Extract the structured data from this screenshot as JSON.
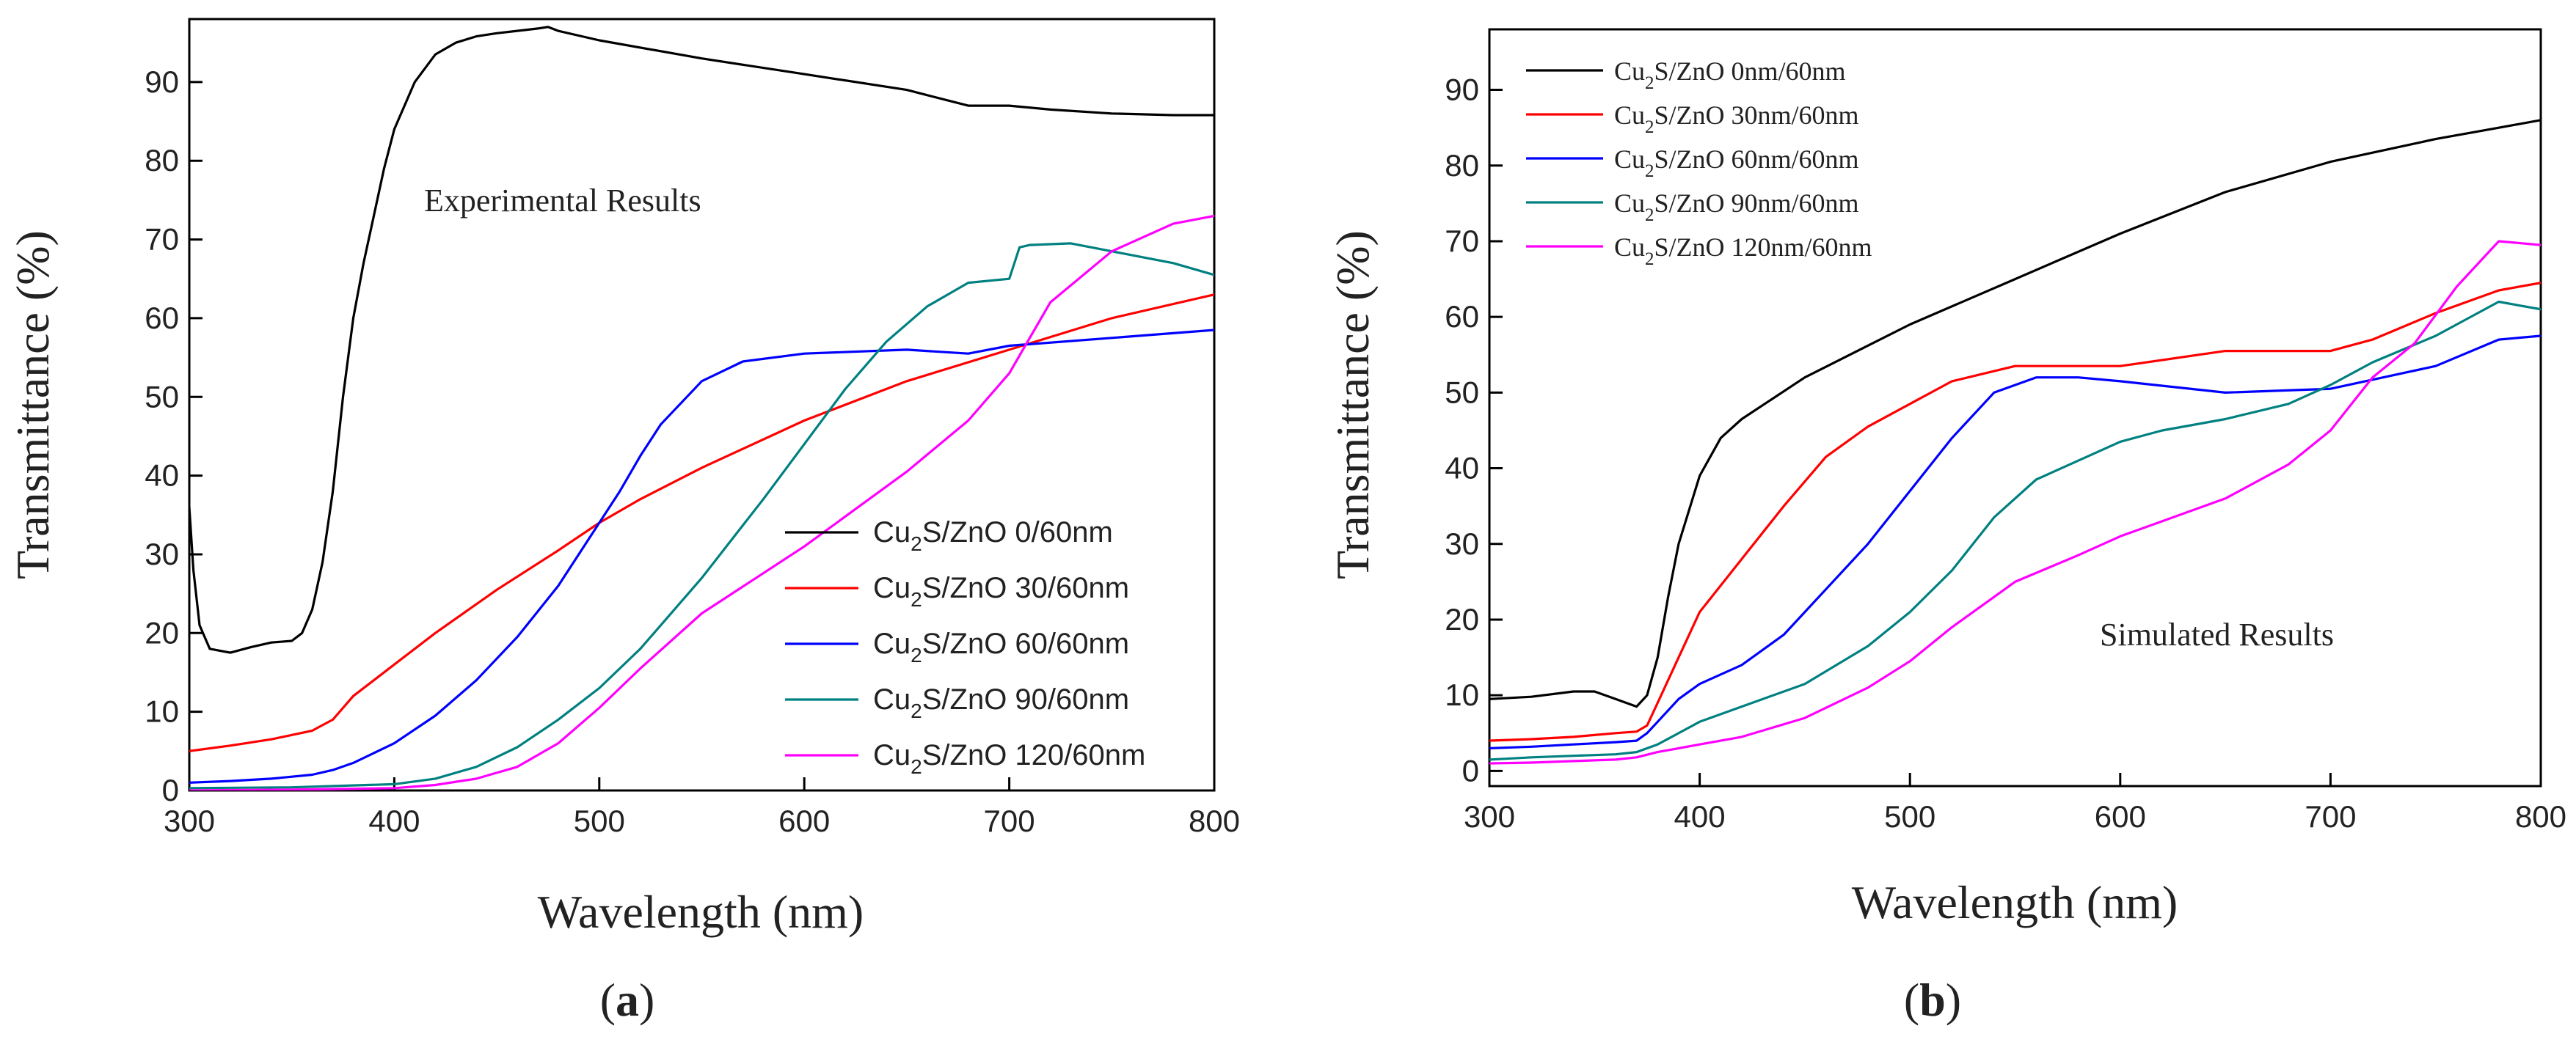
{
  "chart_data": [
    {
      "type": "line",
      "panel_label_open": "(",
      "panel_label_letter": "a",
      "panel_label_close": ")",
      "annotation": "Experimental Results",
      "xlabel": "Wavelength (nm)",
      "ylabel": "Transmittance (%)",
      "xlim": [
        300,
        800
      ],
      "ylim": [
        0,
        98
      ],
      "xticks": [
        300,
        400,
        500,
        600,
        700,
        800
      ],
      "yticks": [
        0,
        10,
        20,
        30,
        40,
        50,
        60,
        70,
        80,
        90
      ],
      "legend_position": "lower-right",
      "series": [
        {
          "name": "Cu2S/ZnO 0/60nm",
          "label_pre": "Cu",
          "label_sub": "2",
          "label_post": "S/ZnO 0/60nm",
          "color": "#000000",
          "x": [
            300,
            302,
            305,
            310,
            320,
            330,
            340,
            350,
            355,
            360,
            365,
            370,
            375,
            380,
            385,
            390,
            395,
            400,
            410,
            420,
            430,
            440,
            450,
            460,
            470,
            475,
            480,
            500,
            550,
            600,
            650,
            680,
            700,
            720,
            750,
            780,
            800
          ],
          "y": [
            36,
            28,
            21,
            18,
            17.5,
            18.2,
            18.8,
            19,
            20,
            23,
            29,
            38,
            50,
            60,
            67,
            73,
            79,
            84,
            90,
            93.5,
            95,
            95.8,
            96.2,
            96.5,
            96.8,
            97,
            96.5,
            95.3,
            93,
            91,
            89,
            87,
            87,
            86.5,
            86,
            85.8,
            85.8
          ]
        },
        {
          "name": "Cu2S/ZnO 30/60nm",
          "label_pre": "Cu",
          "label_sub": "2",
          "label_post": "S/ZnO 30/60nm",
          "color": "#ff0000",
          "x": [
            300,
            320,
            340,
            360,
            370,
            380,
            390,
            400,
            420,
            450,
            480,
            500,
            520,
            550,
            600,
            650,
            700,
            750,
            800
          ],
          "y": [
            5,
            5.7,
            6.5,
            7.6,
            9,
            12,
            14,
            16,
            20,
            25.5,
            30.5,
            34,
            37,
            41,
            47,
            52,
            56,
            60,
            63
          ]
        },
        {
          "name": "Cu2S/ZnO 60/60nm",
          "label_pre": "Cu",
          "label_sub": "2",
          "label_post": "S/ZnO 60/60nm",
          "color": "#0000ff",
          "x": [
            300,
            320,
            340,
            360,
            370,
            380,
            400,
            420,
            440,
            460,
            480,
            500,
            510,
            520,
            530,
            550,
            570,
            600,
            650,
            680,
            700,
            750,
            800
          ],
          "y": [
            1,
            1.2,
            1.5,
            2,
            2.6,
            3.5,
            6,
            9.5,
            14,
            19.5,
            26,
            34,
            38,
            42.5,
            46.5,
            52,
            54.5,
            55.5,
            56,
            55.5,
            56.5,
            57.5,
            58.5
          ]
        },
        {
          "name": "Cu2S/ZnO 90/60nm",
          "label_pre": "Cu",
          "label_sub": "2",
          "label_post": "S/ZnO 90/60nm",
          "color": "#008080",
          "x": [
            300,
            350,
            400,
            420,
            440,
            460,
            480,
            500,
            520,
            550,
            580,
            600,
            620,
            640,
            660,
            680,
            700,
            705,
            710,
            730,
            750,
            780,
            800
          ],
          "y": [
            0.3,
            0.4,
            0.8,
            1.5,
            3,
            5.5,
            9,
            13,
            18,
            27,
            37,
            44,
            51,
            57,
            61.5,
            64.5,
            65,
            69,
            69.3,
            69.5,
            68.5,
            67,
            65.5
          ]
        },
        {
          "name": "Cu2S/ZnO 120/60nm",
          "label_pre": "Cu",
          "label_sub": "2",
          "label_post": "S/ZnO 120/60nm",
          "color": "#ff00ff",
          "x": [
            300,
            350,
            400,
            420,
            440,
            460,
            480,
            500,
            520,
            550,
            600,
            650,
            680,
            700,
            720,
            750,
            780,
            800
          ],
          "y": [
            0,
            0.1,
            0.3,
            0.7,
            1.5,
            3,
            6,
            10.5,
            15.5,
            22.5,
            31,
            40.5,
            47,
            53,
            62,
            68.5,
            72,
            73
          ]
        }
      ]
    },
    {
      "type": "line",
      "panel_label_open": "(",
      "panel_label_letter": "b",
      "panel_label_close": ")",
      "annotation": "Simulated Results",
      "xlabel": "Wavelength (nm)",
      "ylabel": "Transmittance (%)",
      "xlim": [
        300,
        800
      ],
      "ylim": [
        -2,
        98
      ],
      "xticks": [
        300,
        400,
        500,
        600,
        700,
        800
      ],
      "yticks": [
        0,
        10,
        20,
        30,
        40,
        50,
        60,
        70,
        80,
        90
      ],
      "legend_position": "top-left",
      "series": [
        {
          "name": "Cu2S/ZnO 0nm/60nm",
          "label_pre": "Cu",
          "label_sub": "2",
          "label_post": "S/ZnO 0nm/60nm",
          "color": "#000000",
          "x": [
            300,
            320,
            340,
            350,
            360,
            370,
            375,
            380,
            385,
            390,
            400,
            410,
            420,
            450,
            500,
            550,
            600,
            650,
            700,
            750,
            780,
            800
          ],
          "y": [
            9.5,
            9.8,
            10.5,
            10.5,
            9.5,
            8.5,
            10,
            15,
            23,
            30,
            39,
            44,
            46.5,
            52,
            59,
            65,
            71,
            76.5,
            80.5,
            83.5,
            85,
            86
          ]
        },
        {
          "name": "Cu2S/ZnO 30nm/60nm",
          "label_pre": "Cu",
          "label_sub": "2",
          "label_post": "S/ZnO 30nm/60nm",
          "color": "#ff0000",
          "x": [
            300,
            320,
            340,
            360,
            370,
            375,
            380,
            390,
            400,
            420,
            440,
            460,
            480,
            500,
            520,
            550,
            600,
            650,
            700,
            720,
            750,
            780,
            800
          ],
          "y": [
            4,
            4.2,
            4.5,
            5,
            5.2,
            6,
            9,
            15,
            21,
            28,
            35,
            41.5,
            45.5,
            48.5,
            51.5,
            53.5,
            53.5,
            55.5,
            55.5,
            57,
            60.5,
            63.5,
            64.5
          ]
        },
        {
          "name": "Cu2S/ZnO 60nm/60nm",
          "label_pre": "Cu",
          "label_sub": "2",
          "label_post": "S/ZnO 60nm/60nm",
          "color": "#0000ff",
          "x": [
            300,
            320,
            340,
            360,
            370,
            375,
            380,
            390,
            400,
            420,
            440,
            460,
            480,
            500,
            520,
            540,
            560,
            580,
            600,
            650,
            700,
            750,
            780,
            800
          ],
          "y": [
            3,
            3.2,
            3.5,
            3.8,
            4,
            5,
            6.5,
            9.5,
            11.5,
            14,
            18,
            24,
            30,
            37,
            44,
            50,
            52,
            52,
            51.5,
            50,
            50.5,
            53.5,
            57,
            57.5
          ]
        },
        {
          "name": "Cu2S/ZnO 90nm/60nm",
          "label_pre": "Cu",
          "label_sub": "2",
          "label_post": "S/ZnO 90nm/60nm",
          "color": "#008080",
          "x": [
            300,
            320,
            340,
            360,
            370,
            380,
            400,
            420,
            450,
            480,
            500,
            520,
            540,
            560,
            600,
            620,
            650,
            680,
            700,
            720,
            750,
            780,
            800
          ],
          "y": [
            1.5,
            1.8,
            2,
            2.2,
            2.5,
            3.5,
            6.5,
            8.5,
            11.5,
            16.5,
            21,
            26.5,
            33.5,
            38.5,
            43.5,
            45,
            46.5,
            48.5,
            51,
            54,
            57.5,
            62,
            61
          ]
        },
        {
          "name": "Cu2S/ZnO 120nm/60nm",
          "label_pre": "Cu",
          "label_sub": "2",
          "label_post": "S/ZnO 120nm/60nm",
          "color": "#ff00ff",
          "x": [
            300,
            320,
            340,
            360,
            370,
            380,
            400,
            420,
            450,
            480,
            500,
            520,
            550,
            580,
            600,
            650,
            680,
            700,
            720,
            740,
            760,
            780,
            800
          ],
          "y": [
            1,
            1.1,
            1.3,
            1.5,
            1.8,
            2.5,
            3.5,
            4.5,
            7,
            11,
            14.5,
            19,
            25,
            28.5,
            31,
            36,
            40.5,
            45,
            52,
            56.5,
            64,
            70,
            69.5
          ]
        }
      ]
    }
  ]
}
